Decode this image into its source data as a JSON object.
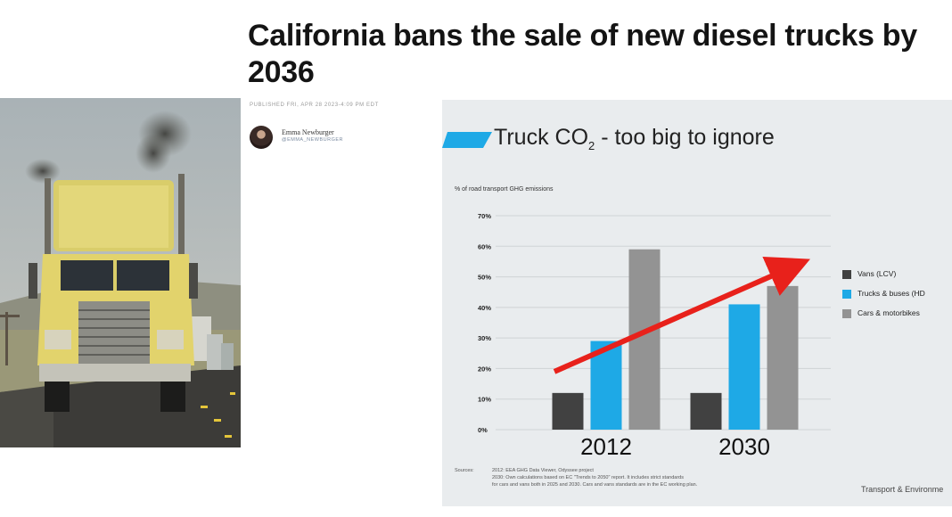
{
  "article": {
    "headline": "California bans the sale of new diesel trucks by 2036",
    "published": "PUBLISHED FRI, APR 28 2023-4:09 PM EDT",
    "author_name": "Emma Newburger",
    "author_handle": "@EMMA_NEWBURGER"
  },
  "photo": {
    "description_icon": "truck-photo"
  },
  "chart_data": {
    "type": "bar",
    "title_main": "Truck CO",
    "title_sub": "2",
    "title_rest": " - too big to ignore",
    "ylabel": "% of road transport GHG emissions",
    "ylim": [
      0,
      70
    ],
    "yticks": [
      "0%",
      "10%",
      "20%",
      "30%",
      "40%",
      "50%",
      "60%",
      "70%"
    ],
    "categories": [
      "2012",
      "2030"
    ],
    "series": [
      {
        "name": "Vans (LCV)",
        "color": "#414141",
        "values": [
          12,
          12
        ]
      },
      {
        "name": "Trucks & buses (HD",
        "color": "#1ea9e6",
        "values": [
          29,
          41
        ]
      },
      {
        "name": "Cars & motorbikes",
        "color": "#939393",
        "values": [
          59,
          47
        ]
      }
    ],
    "trend_arrow": {
      "color": "#e8211b",
      "from": [
        0,
        19
      ],
      "to": [
        1,
        53
      ]
    },
    "sources_label": "Sources:",
    "sources_lines": [
      "2012: EEA GHG Data Viewer, Odyssee project",
      "2030: Own calculations based on EC \"Trends to 2050\" report. It includes strict standards",
      "for cars and vans both in 2025 and 2030. Cars and vans standards are in the EC working plan."
    ],
    "brand": "Transport & Environme",
    "grid": true,
    "legend_position": "right"
  }
}
